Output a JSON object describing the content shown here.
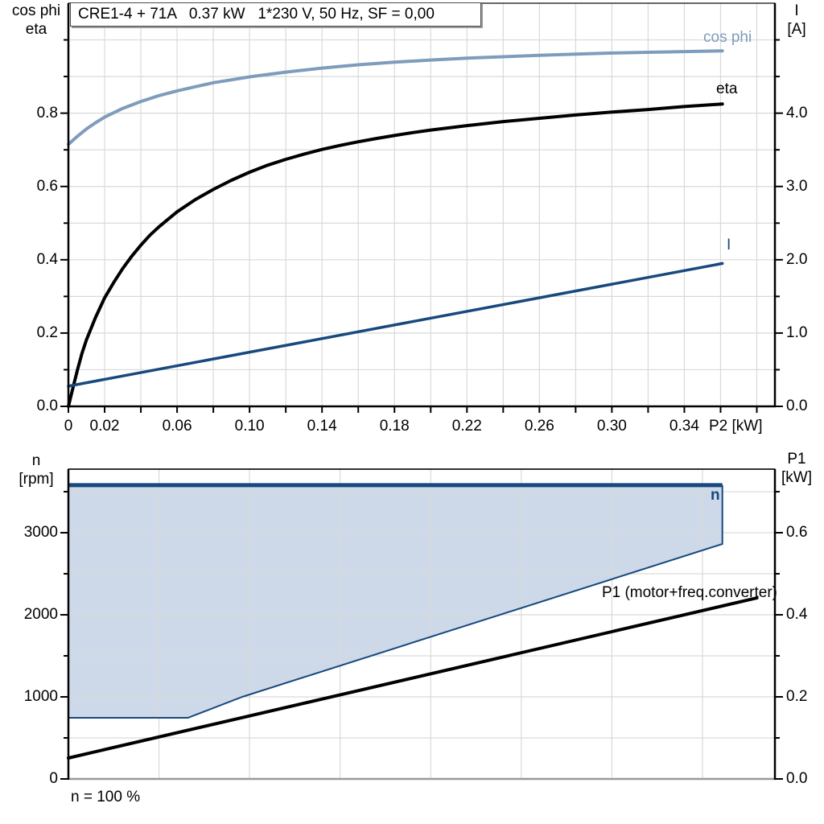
{
  "colors": {
    "dark_blue": "#17497E",
    "light_blue": "#7E9CBB",
    "region_fill": "#CDD9E8",
    "grid": "#D9D9D9",
    "black": "#000000"
  },
  "chart_data": [
    {
      "type": "line",
      "title": "CRE1-4 + 71A   0.37 kW   1*230 V, 50 Hz, SF = 0,00",
      "x_axis": {
        "label": "P2 [kW]",
        "min": 0,
        "max": 0.39,
        "tick_step": 0.02,
        "labeled_ticks": [
          {
            "v": 0,
            "t": "0"
          },
          {
            "v": 0.02,
            "t": "0.02"
          },
          {
            "v": 0.06,
            "t": "0.06"
          },
          {
            "v": 0.1,
            "t": "0.10"
          },
          {
            "v": 0.14,
            "t": "0.14"
          },
          {
            "v": 0.18,
            "t": "0.18"
          },
          {
            "v": 0.22,
            "t": "0.22"
          },
          {
            "v": 0.26,
            "t": "0.26"
          },
          {
            "v": 0.3,
            "t": "0.30"
          },
          {
            "v": 0.34,
            "t": "0.34"
          }
        ]
      },
      "left_axis": {
        "title_line1": "cos phi",
        "title_line2": "eta",
        "min": 0,
        "max": 1.1,
        "grid_step": 0.1,
        "labeled_ticks": [
          {
            "v": 0.8,
            "t": "0.8"
          },
          {
            "v": 0.6,
            "t": "0.6"
          },
          {
            "v": 0.4,
            "t": "0.4"
          },
          {
            "v": 0.2,
            "t": "0.2"
          },
          {
            "v": 0,
            "t": "0.0"
          }
        ]
      },
      "right_axis": {
        "title_line1": "I",
        "title_line2": "[A]",
        "min": 0,
        "max": 5.5,
        "grid_step": 0.5,
        "labeled_ticks": [
          {
            "v": 4,
            "t": "4.0"
          },
          {
            "v": 3,
            "t": "3.0"
          },
          {
            "v": 2,
            "t": "2.0"
          },
          {
            "v": 1,
            "t": "1.0"
          },
          {
            "v": 0,
            "t": "0.0"
          }
        ]
      },
      "series": [
        {
          "name": "cos phi",
          "axis": "left",
          "color": "#7E9CBB",
          "width": 4,
          "points": [
            [
              0,
              0.715
            ],
            [
              0.005,
              0.737
            ],
            [
              0.01,
              0.757
            ],
            [
              0.015,
              0.774
            ],
            [
              0.02,
              0.789
            ],
            [
              0.03,
              0.813
            ],
            [
              0.04,
              0.832
            ],
            [
              0.05,
              0.848
            ],
            [
              0.06,
              0.861
            ],
            [
              0.07,
              0.872
            ],
            [
              0.08,
              0.883
            ],
            [
              0.09,
              0.891
            ],
            [
              0.1,
              0.899
            ],
            [
              0.12,
              0.912
            ],
            [
              0.14,
              0.923
            ],
            [
              0.16,
              0.932
            ],
            [
              0.18,
              0.939
            ],
            [
              0.2,
              0.945
            ],
            [
              0.22,
              0.95
            ],
            [
              0.24,
              0.954
            ],
            [
              0.26,
              0.958
            ],
            [
              0.28,
              0.961
            ],
            [
              0.3,
              0.964
            ],
            [
              0.32,
              0.966
            ],
            [
              0.34,
              0.968
            ],
            [
              0.361,
              0.97
            ]
          ]
        },
        {
          "name": "eta",
          "axis": "left",
          "color": "#000000",
          "width": 4,
          "points": [
            [
              0,
              0
            ],
            [
              0.0025,
              0.05
            ],
            [
              0.005,
              0.1
            ],
            [
              0.0075,
              0.145
            ],
            [
              0.01,
              0.182
            ],
            [
              0.015,
              0.243
            ],
            [
              0.02,
              0.296
            ],
            [
              0.025,
              0.338
            ],
            [
              0.03,
              0.376
            ],
            [
              0.035,
              0.41
            ],
            [
              0.04,
              0.44
            ],
            [
              0.045,
              0.467
            ],
            [
              0.05,
              0.49
            ],
            [
              0.06,
              0.531
            ],
            [
              0.07,
              0.564
            ],
            [
              0.08,
              0.592
            ],
            [
              0.09,
              0.617
            ],
            [
              0.1,
              0.639
            ],
            [
              0.11,
              0.658
            ],
            [
              0.12,
              0.674
            ],
            [
              0.13,
              0.688
            ],
            [
              0.14,
              0.701
            ],
            [
              0.15,
              0.712
            ],
            [
              0.16,
              0.722
            ],
            [
              0.17,
              0.731
            ],
            [
              0.18,
              0.739
            ],
            [
              0.19,
              0.747
            ],
            [
              0.2,
              0.754
            ],
            [
              0.22,
              0.766
            ],
            [
              0.24,
              0.777
            ],
            [
              0.26,
              0.786
            ],
            [
              0.28,
              0.795
            ],
            [
              0.3,
              0.803
            ],
            [
              0.32,
              0.81
            ],
            [
              0.34,
              0.818
            ],
            [
              0.361,
              0.825
            ]
          ]
        },
        {
          "name": "I",
          "axis": "right",
          "color": "#17497E",
          "width": 3.5,
          "points": [
            [
              0,
              0.275
            ],
            [
              0.361,
              1.95
            ]
          ]
        }
      ]
    },
    {
      "type": "area+line",
      "x_axis": {
        "min": 0,
        "max": 0.39,
        "grid_step": 0.05
      },
      "left_axis": {
        "title_line1": "n",
        "title_line2": "[rpm]",
        "min": 0,
        "max": 3775,
        "grid_step": 500,
        "labeled_ticks": [
          {
            "v": 3000,
            "t": "3000"
          },
          {
            "v": 2000,
            "t": "2000"
          },
          {
            "v": 1000,
            "t": "1000"
          },
          {
            "v": 0,
            "t": "0"
          }
        ]
      },
      "right_axis": {
        "title_line1": "P1",
        "title_line2": "[kW]",
        "min": 0,
        "max": 0.755,
        "grid_step": 0.1,
        "labeled_ticks": [
          {
            "v": 0.6,
            "t": "0.6"
          },
          {
            "v": 0.4,
            "t": "0.4"
          },
          {
            "v": 0.2,
            "t": "0.2"
          },
          {
            "v": 0,
            "t": "0.0"
          }
        ]
      },
      "series": [
        {
          "name": "n",
          "type": "area",
          "axis": "left",
          "line_color": "#17497E",
          "fill_color": "#CDD9E8",
          "top_width": 5,
          "edge_width": 2,
          "upper": [
            [
              0,
              3580
            ],
            [
              0.361,
              3580
            ]
          ],
          "lower": [
            [
              0,
              745
            ],
            [
              0.066,
              745
            ],
            [
              0.096,
              1000
            ],
            [
              0.361,
              2863
            ]
          ]
        },
        {
          "name": "P1 (motor+freq.converter)",
          "type": "line",
          "axis": "right",
          "color": "#000000",
          "width": 4,
          "points": [
            [
              0,
              0.051
            ],
            [
              0.38,
              0.441
            ]
          ]
        }
      ],
      "footer": "n = 100 %"
    }
  ]
}
